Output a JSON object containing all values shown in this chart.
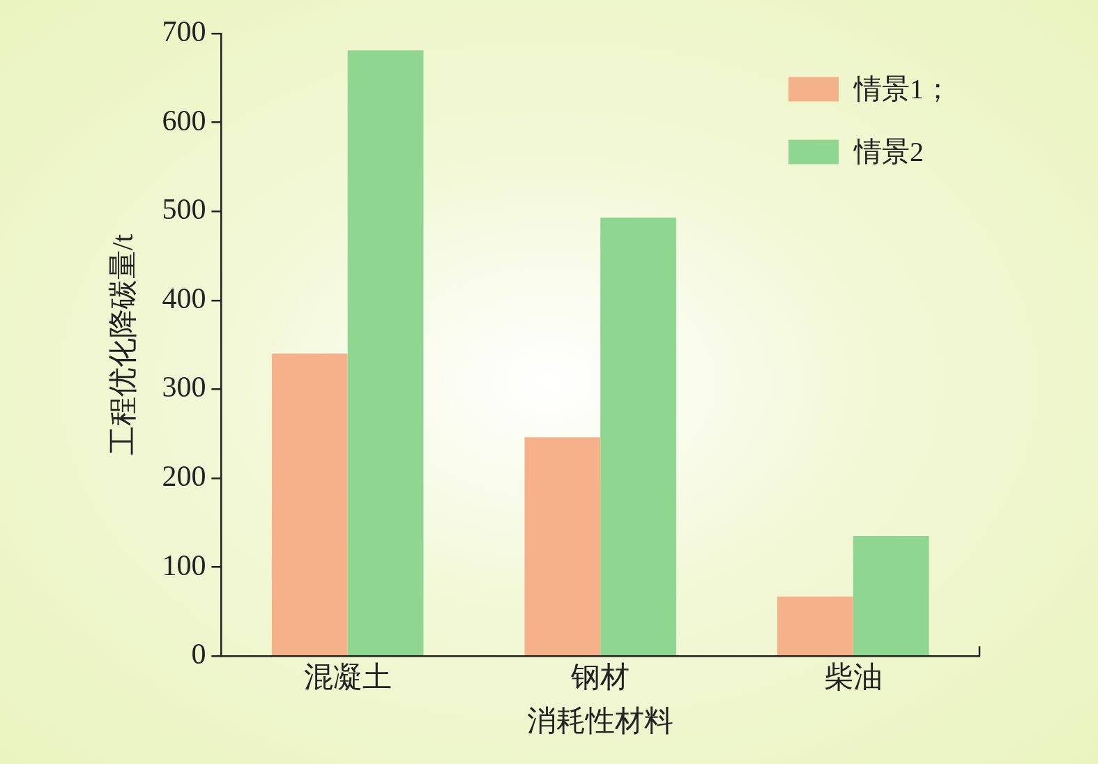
{
  "chart_data": {
    "type": "bar",
    "xlabel": "消耗性材料",
    "ylabel": "工程优化降碳量/t",
    "categories": [
      "混凝土",
      "钢材",
      "柴油"
    ],
    "series": [
      {
        "name": "情景1；",
        "color": "#f5b28a",
        "values": [
          340,
          246,
          67
        ]
      },
      {
        "name": "情景2",
        "color": "#8fd690",
        "values": [
          681,
          493,
          135
        ]
      }
    ],
    "ylim": [
      0,
      700
    ],
    "yticks": [
      0,
      100,
      200,
      300,
      400,
      500,
      600,
      700
    ],
    "grid": false,
    "legend": "top right"
  }
}
